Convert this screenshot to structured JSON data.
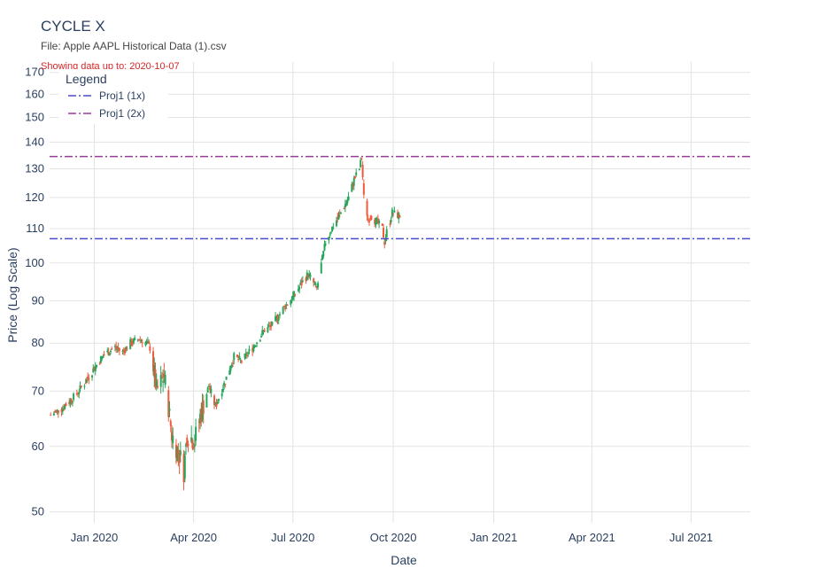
{
  "header": {
    "title": "CYCLE X",
    "subtitle": "File: Apple AAPL Historical Data (1).csv",
    "note": "Showing data up to: 2020-10-07"
  },
  "chart_data": {
    "type": "candlestick",
    "xlabel": "Date",
    "ylabel": "Price (Log Scale)",
    "y_scale": "log",
    "xlim": [
      "2019-11-21",
      "2021-08-24"
    ],
    "ylim": [
      48.5,
      175
    ],
    "x_ticks": [
      {
        "date": "2020-01-01",
        "label": "Jan 2020"
      },
      {
        "date": "2020-04-01",
        "label": "Apr 2020"
      },
      {
        "date": "2020-07-01",
        "label": "Jul 2020"
      },
      {
        "date": "2020-10-01",
        "label": "Oct 2020"
      },
      {
        "date": "2021-01-01",
        "label": "Jan 2021"
      },
      {
        "date": "2021-04-01",
        "label": "Apr 2021"
      },
      {
        "date": "2021-07-01",
        "label": "Jul 2021"
      }
    ],
    "y_ticks": [
      50,
      60,
      70,
      80,
      90,
      100,
      110,
      120,
      130,
      140,
      150,
      160,
      170
    ],
    "grid": true,
    "legend": {
      "title": "Legend",
      "position": "top-left",
      "entries": [
        {
          "name": "Proj1 (1x)",
          "color": "#4a4ad0"
        },
        {
          "name": "Proj1 (2x)",
          "color": "#9a3a9a"
        }
      ]
    },
    "lines": [
      {
        "name": "Proj1 (1x)",
        "value": 107,
        "color": "#4a4ad0",
        "dash": "dashdot"
      },
      {
        "name": "Proj1 (2x)",
        "value": 134.5,
        "color": "#9a3a9a",
        "dash": "dashdot"
      }
    ],
    "colors": {
      "up": "#26a65b",
      "down": "#ef5a3c"
    },
    "keypoints": [
      [
        "2019-11-22",
        65.5
      ],
      [
        "2019-12-01",
        66.5
      ],
      [
        "2019-12-12",
        68.5
      ],
      [
        "2019-12-23",
        71.5
      ],
      [
        "2020-01-02",
        75
      ],
      [
        "2020-01-10",
        77.5
      ],
      [
        "2020-01-20",
        79
      ],
      [
        "2020-01-27",
        78
      ],
      [
        "2020-02-03",
        80
      ],
      [
        "2020-02-12",
        81
      ],
      [
        "2020-02-18",
        80
      ],
      [
        "2020-02-21",
        79
      ],
      [
        "2020-02-24",
        75
      ],
      [
        "2020-02-27",
        70
      ],
      [
        "2020-03-05",
        73
      ],
      [
        "2020-03-09",
        67
      ],
      [
        "2020-03-12",
        62
      ],
      [
        "2020-03-16",
        60
      ],
      [
        "2020-03-20",
        58
      ],
      [
        "2020-03-23",
        56
      ],
      [
        "2020-03-26",
        62
      ],
      [
        "2020-04-02",
        61
      ],
      [
        "2020-04-08",
        66
      ],
      [
        "2020-04-15",
        71
      ],
      [
        "2020-04-21",
        67
      ],
      [
        "2020-04-30",
        72
      ],
      [
        "2020-05-08",
        77
      ],
      [
        "2020-05-15",
        76
      ],
      [
        "2020-05-25",
        79
      ],
      [
        "2020-06-05",
        83
      ],
      [
        "2020-06-12",
        84
      ],
      [
        "2020-06-22",
        88
      ],
      [
        "2020-07-01",
        91
      ],
      [
        "2020-07-08",
        94
      ],
      [
        "2020-07-15",
        97
      ],
      [
        "2020-07-23",
        93
      ],
      [
        "2020-07-31",
        106
      ],
      [
        "2020-08-07",
        111
      ],
      [
        "2020-08-14",
        115
      ],
      [
        "2020-08-21",
        120
      ],
      [
        "2020-08-26",
        126
      ],
      [
        "2020-08-31",
        130
      ],
      [
        "2020-09-02",
        134
      ],
      [
        "2020-09-04",
        120
      ],
      [
        "2020-09-08",
        113
      ],
      [
        "2020-09-11",
        114
      ],
      [
        "2020-09-16",
        112
      ],
      [
        "2020-09-21",
        110
      ],
      [
        "2020-09-23",
        106
      ],
      [
        "2020-09-25",
        109
      ],
      [
        "2020-09-30",
        115
      ],
      [
        "2020-10-07",
        114
      ]
    ]
  }
}
